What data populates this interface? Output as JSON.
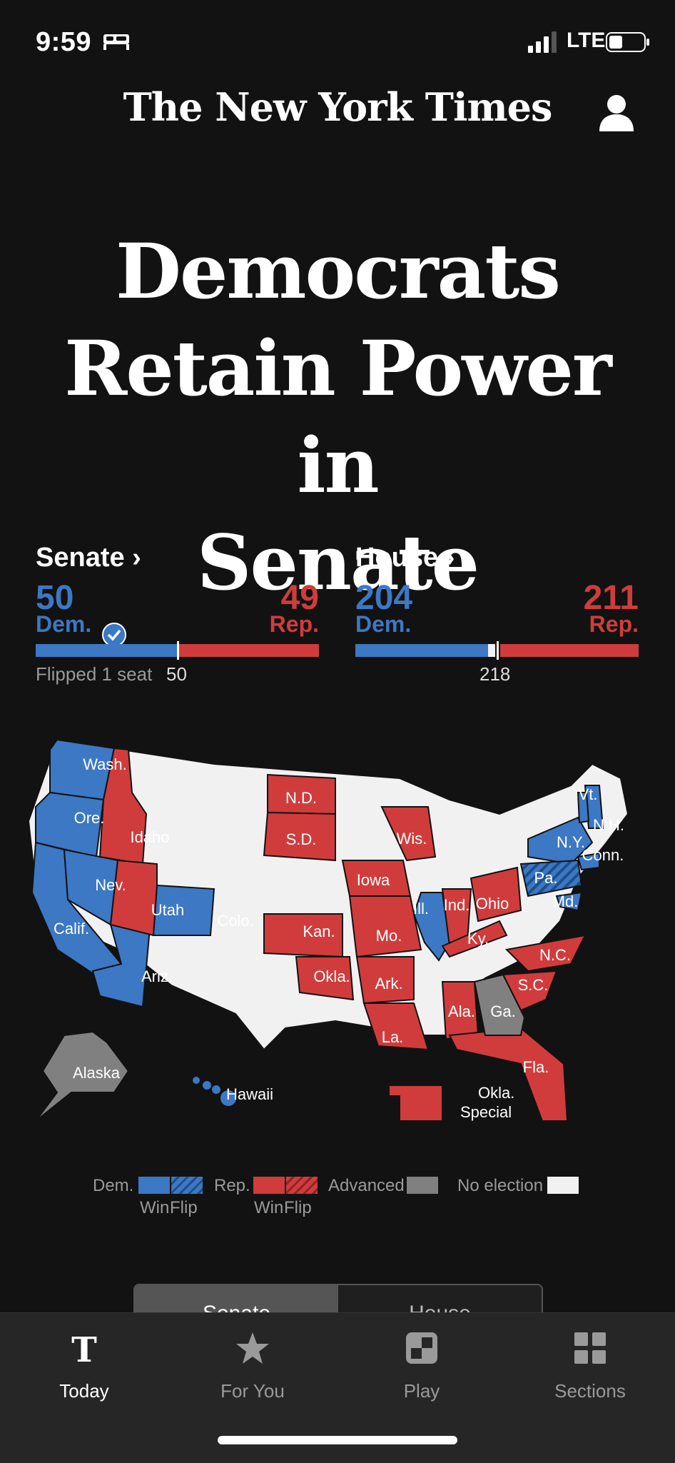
{
  "status_bar": {
    "time": "9:59",
    "network": "LTE",
    "icons": [
      "bed-icon",
      "signal-icon",
      "battery-icon"
    ]
  },
  "header": {
    "masthead": "The New York Times",
    "account_icon": "person-icon"
  },
  "headline": {
    "line1": "Democrats",
    "line2": "Retain Power in",
    "line3": "Senate"
  },
  "senate": {
    "label": "Senate ›",
    "dem_seats": "50",
    "rep_seats": "49",
    "dem_label": "Dem.",
    "rep_label": "Rep.",
    "note": "Flipped 1 seat",
    "threshold": "50",
    "dem_share": 0.5,
    "rep_share": 0.49
  },
  "house": {
    "label": "House ›",
    "dem_seats": "204",
    "rep_seats": "211",
    "dem_label": "Dem.",
    "rep_label": "Rep.",
    "threshold": "218",
    "dem_share": 0.469,
    "rep_share": 0.485
  },
  "map": {
    "colors": {
      "dem": "#3c78c3",
      "rep": "#d03c3c",
      "advanced": "#808080",
      "no_election": "#f1f1f1"
    },
    "labels": {
      "wash": "Wash.",
      "ore": "Ore.",
      "idaho": "Idaho",
      "calif": "Calif.",
      "nev": "Nev.",
      "utah": "Utah",
      "ariz": "Ariz.",
      "colo": "Colo.",
      "nd": "N.D.",
      "sd": "S.D.",
      "kan": "Kan.",
      "okla": "Okla.",
      "iowa": "Iowa",
      "mo": "Mo.",
      "ark": "Ark.",
      "la": "La.",
      "wis": "Wis.",
      "ill": "Ill.",
      "ind": "Ind.",
      "ohio": "Ohio",
      "ky": "Ky.",
      "ala": "Ala.",
      "ga": "Ga.",
      "fla": "Fla.",
      "sc": "S.C.",
      "nc": "N.C.",
      "pa": "Pa.",
      "md": "Md.",
      "ny": "N.Y.",
      "conn": "Conn.",
      "vt": "Vt.",
      "nh": "N.H.",
      "alaska": "Alaska",
      "hawaii": "Hawaii",
      "okla_special_1": "Okla.",
      "okla_special_2": "Special"
    }
  },
  "legend": {
    "dem": "Dem.",
    "rep": "Rep.",
    "win": "Win",
    "flip": "Flip",
    "advanced": "Advanced",
    "no_election": "No election"
  },
  "segmented": {
    "senate": "Senate",
    "house": "House"
  },
  "tabbar": [
    {
      "label": "Today",
      "icon": "nyt-logo-icon"
    },
    {
      "label": "For You",
      "icon": "star-icon"
    },
    {
      "label": "Play",
      "icon": "play-puzzle-icon"
    },
    {
      "label": "Sections",
      "icon": "grid-icon"
    }
  ]
}
